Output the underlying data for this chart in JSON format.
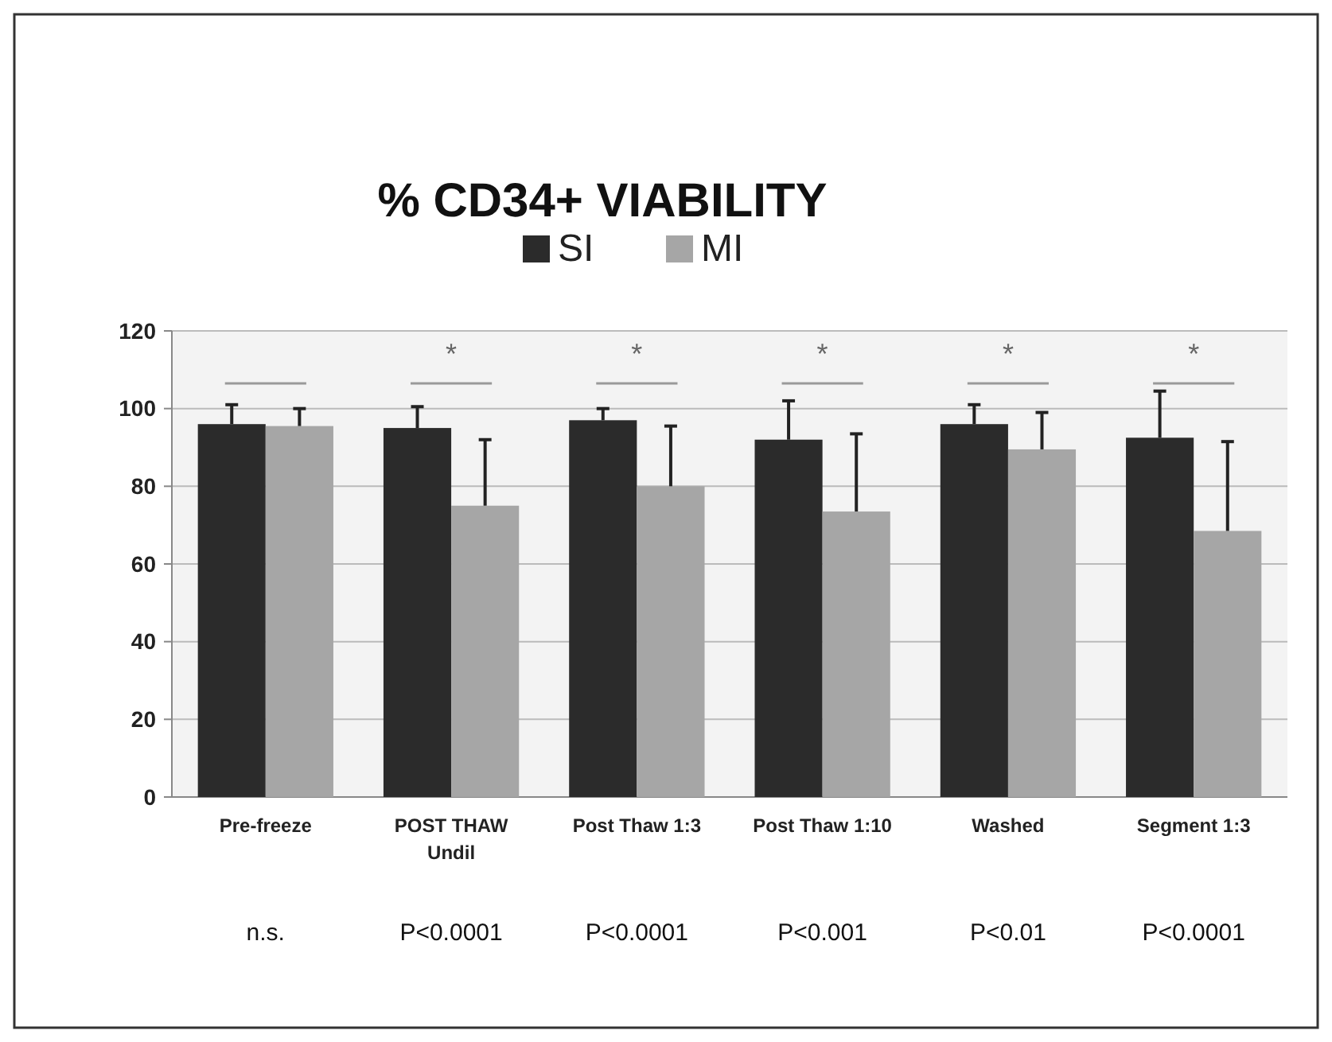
{
  "chart_data": {
    "type": "bar",
    "title": "% CD34+ VIABILITY",
    "categories": [
      "Pre-freeze",
      "POST THAW\nUndil",
      "Post Thaw 1:3",
      "Post Thaw 1:10",
      "Washed",
      "Segment 1:3"
    ],
    "series": [
      {
        "name": "SI",
        "color": "#2b2b2b",
        "values": [
          96,
          95,
          97,
          92,
          96,
          92.5
        ],
        "errors": [
          5,
          5.5,
          3,
          10,
          5,
          12
        ]
      },
      {
        "name": "MI",
        "color": "#a6a6a6",
        "values": [
          95.5,
          75,
          80,
          73.5,
          89.5,
          68.5
        ],
        "errors": [
          4.5,
          17,
          15.5,
          20,
          9.5,
          23
        ]
      }
    ],
    "ylim": [
      0,
      120
    ],
    "yticks": [
      0,
      20,
      40,
      60,
      80,
      100,
      120
    ],
    "grid": "y",
    "legend": "top",
    "annotations": [
      "*",
      "*",
      "*",
      "*",
      "*",
      "n.s.",
      "P<0.0001",
      "P<0.0001",
      "P<0.001",
      "P<0.01",
      "P<0.0001"
    ]
  }
}
